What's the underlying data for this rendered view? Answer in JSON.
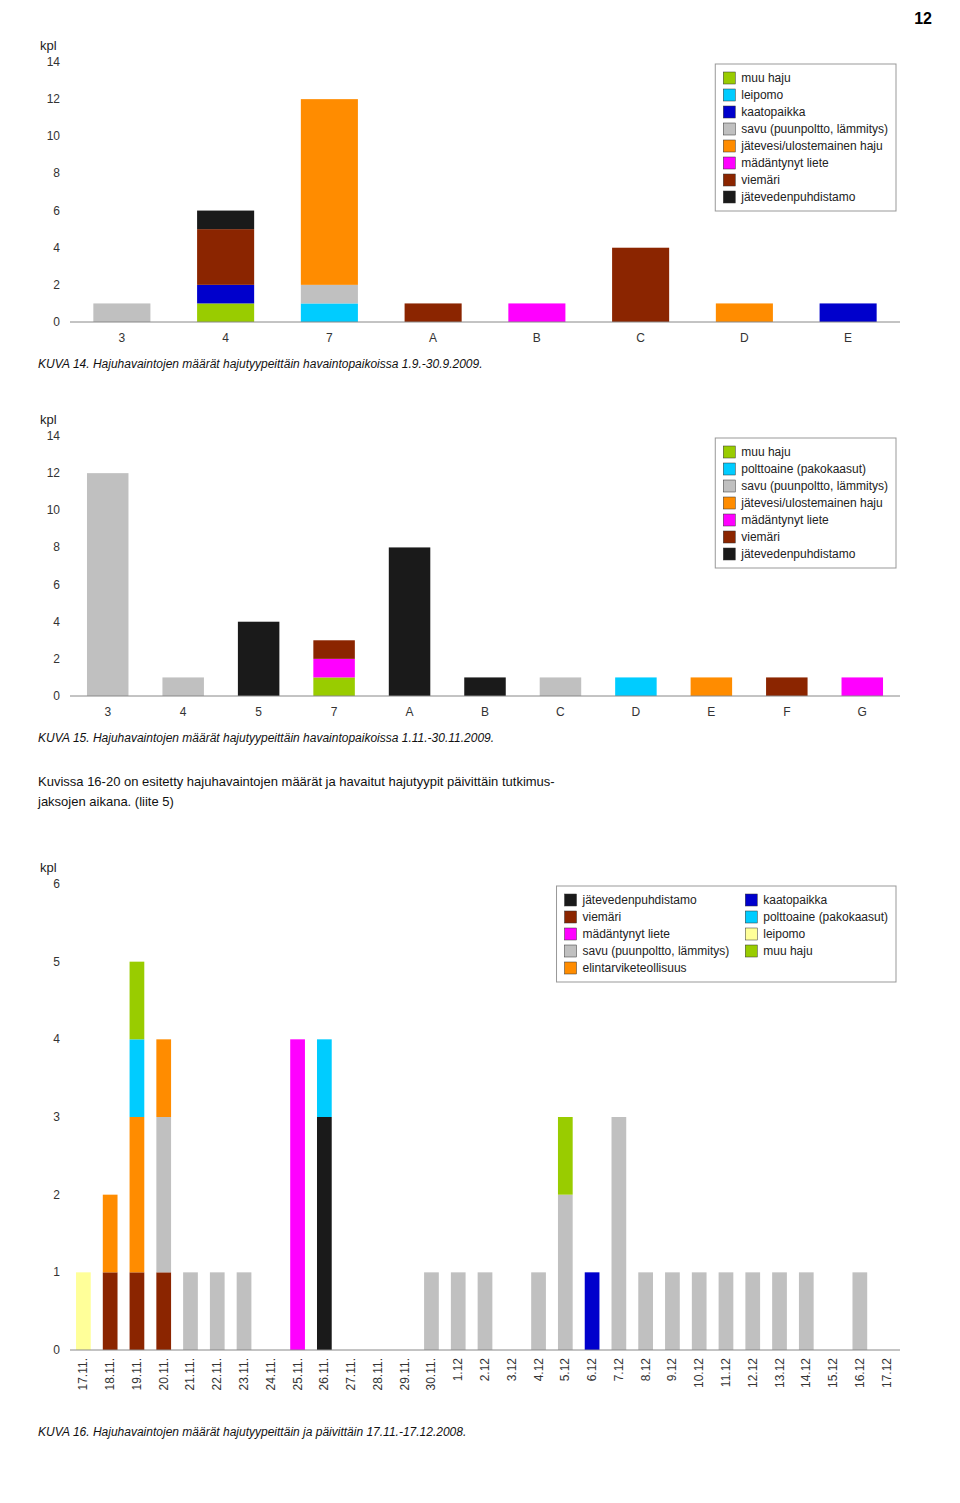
{
  "page_number": "12",
  "text": [
    "Kuvissa 16-20 on esitetty hajuhavaintojen määrät ja havaitut hajutyypit päivittäin tutkimus-",
    "jaksojen aikana. (liite 5)"
  ],
  "chart_data": [
    {
      "type": "bar",
      "stacked": true,
      "grid": false,
      "legend": "upper right",
      "title": "KUVA 14. Hajuhavaintojen määrät hajutyypeittäin havaintopaikoissa 1.9.-30.9.2009.",
      "ylabel": "kpl",
      "ylim": [
        0,
        14
      ],
      "yticks": [
        0,
        2,
        4,
        6,
        8,
        10,
        12,
        14
      ],
      "categories": [
        "3",
        "4",
        "7",
        "A",
        "B",
        "C",
        "D",
        "E"
      ],
      "series": [
        {
          "name": "muu haju",
          "color": "#99cc00",
          "values": [
            0,
            1,
            0,
            0,
            0,
            0,
            0,
            0
          ]
        },
        {
          "name": "leipomo",
          "color": "#00ccff",
          "values": [
            0,
            0,
            1,
            0,
            0,
            0,
            0,
            0
          ]
        },
        {
          "name": "kaatopaikka",
          "color": "#0000cc",
          "values": [
            0,
            1,
            0,
            0,
            0,
            0,
            0,
            1
          ]
        },
        {
          "name": "savu (puunpoltto, lämmitys)",
          "color": "#c0c0c0",
          "values": [
            1,
            0,
            1,
            0,
            0,
            0,
            0,
            0
          ]
        },
        {
          "name": "jätevesi/ulostemainen haju",
          "color": "#ff8c00",
          "values": [
            0,
            0,
            10,
            0,
            0,
            0,
            1,
            0
          ]
        },
        {
          "name": "mädäntynyt liete",
          "color": "#ff00ff",
          "values": [
            0,
            0,
            0,
            0,
            1,
            0,
            0,
            0
          ]
        },
        {
          "name": "viemäri",
          "color": "#8b2500",
          "values": [
            0,
            3,
            0,
            1,
            0,
            4,
            0,
            0
          ]
        },
        {
          "name": "jätevedenpuhdistamo",
          "color": "#1a1a1a",
          "values": [
            0,
            1,
            0,
            0,
            0,
            0,
            0,
            0
          ]
        }
      ]
    },
    {
      "type": "bar",
      "stacked": true,
      "grid": false,
      "legend": "upper right",
      "title": "KUVA 15. Hajuhavaintojen määrät hajutyypeittäin havaintopaikoissa 1.11.-30.11.2009.",
      "ylabel": "kpl",
      "ylim": [
        0,
        14
      ],
      "yticks": [
        0,
        2,
        4,
        6,
        8,
        10,
        12,
        14
      ],
      "categories": [
        "3",
        "4",
        "5",
        "7",
        "A",
        "B",
        "C",
        "D",
        "E",
        "F",
        "G"
      ],
      "series": [
        {
          "name": "muu haju",
          "color": "#99cc00",
          "values": [
            0,
            0,
            0,
            1,
            0,
            0,
            0,
            0,
            0,
            0,
            0
          ]
        },
        {
          "name": "polttoaine (pakokaasut)",
          "color": "#00ccff",
          "values": [
            0,
            0,
            0,
            0,
            0,
            0,
            0,
            1,
            0,
            0,
            0
          ]
        },
        {
          "name": "savu (puunpoltto, lämmitys)",
          "color": "#c0c0c0",
          "values": [
            12,
            1,
            0,
            0,
            0,
            0,
            1,
            0,
            0,
            0,
            0
          ]
        },
        {
          "name": "jätevesi/ulostemainen haju",
          "color": "#ff8c00",
          "values": [
            0,
            0,
            0,
            0,
            0,
            0,
            0,
            0,
            1,
            0,
            0
          ]
        },
        {
          "name": "mädäntynyt liete",
          "color": "#ff00ff",
          "values": [
            0,
            0,
            0,
            1,
            0,
            0,
            0,
            0,
            0,
            0,
            1
          ]
        },
        {
          "name": "viemäri",
          "color": "#8b2500",
          "values": [
            0,
            0,
            0,
            1,
            0,
            0,
            0,
            0,
            0,
            1,
            0
          ]
        },
        {
          "name": "jätevedenpuhdistamo",
          "color": "#1a1a1a",
          "values": [
            0,
            0,
            4,
            0,
            8,
            1,
            0,
            0,
            0,
            0,
            0
          ]
        }
      ]
    },
    {
      "type": "bar",
      "stacked": true,
      "grid": false,
      "legend": "upper right",
      "title": "KUVA 16. Hajuhavaintojen määrät hajutyypeittäin ja päivittäin 17.11.-17.12.2008.",
      "ylabel": "kpl",
      "ylim": [
        0,
        6
      ],
      "yticks": [
        0,
        1,
        2,
        3,
        4,
        5,
        6
      ],
      "categories": [
        "17.11.",
        "18.11.",
        "19.11.",
        "20.11.",
        "21.11.",
        "22.11.",
        "23.11.",
        "24.11.",
        "25.11.",
        "26.11.",
        "27.11.",
        "28.11.",
        "29.11.",
        "30.11.",
        "1.12",
        "2.12",
        "3.12",
        "4.12",
        "5.12",
        "6.12",
        "7.12",
        "8.12",
        "9.12",
        "10.12",
        "11.12",
        "12.12",
        "13.12",
        "14.12",
        "15.12",
        "16.12",
        "17.12"
      ],
      "series": [
        {
          "name": "jätevedenpuhdistamo",
          "color": "#1a1a1a",
          "values": [
            0,
            0,
            0,
            0,
            0,
            0,
            0,
            0,
            0,
            3,
            0,
            0,
            0,
            0,
            0,
            0,
            0,
            0,
            0,
            0,
            0,
            0,
            0,
            0,
            0,
            0,
            0,
            0,
            0,
            0,
            0
          ]
        },
        {
          "name": "viemäri",
          "color": "#8b2500",
          "values": [
            0,
            1,
            1,
            1,
            0,
            0,
            0,
            0,
            0,
            0,
            0,
            0,
            0,
            0,
            0,
            0,
            0,
            0,
            0,
            0,
            0,
            0,
            0,
            0,
            0,
            0,
            0,
            0,
            0,
            0,
            0
          ]
        },
        {
          "name": "mädäntynyt liete",
          "color": "#ff00ff",
          "values": [
            0,
            0,
            0,
            0,
            0,
            0,
            0,
            0,
            4,
            0,
            0,
            0,
            0,
            0,
            0,
            0,
            0,
            0,
            0,
            0,
            0,
            0,
            0,
            0,
            0,
            0,
            0,
            0,
            0,
            0,
            0
          ]
        },
        {
          "name": "savu (puunpoltto, lämmitys)",
          "color": "#c0c0c0",
          "values": [
            0,
            0,
            0,
            2,
            1,
            1,
            1,
            0,
            0,
            0,
            0,
            0,
            0,
            1,
            1,
            1,
            0,
            1,
            2,
            0,
            3,
            1,
            1,
            1,
            1,
            1,
            1,
            1,
            0,
            1,
            0
          ]
        },
        {
          "name": "elintarviketeollisuus",
          "color": "#ff8c00",
          "values": [
            0,
            1,
            2,
            1,
            0,
            0,
            0,
            0,
            0,
            0,
            0,
            0,
            0,
            0,
            0,
            0,
            0,
            0,
            0,
            0,
            0,
            0,
            0,
            0,
            0,
            0,
            0,
            0,
            0,
            0,
            0
          ]
        },
        {
          "name": "kaatopaikka",
          "color": "#0000cc",
          "values": [
            0,
            0,
            0,
            0,
            0,
            0,
            0,
            0,
            0,
            0,
            0,
            0,
            0,
            0,
            0,
            0,
            0,
            0,
            0,
            1,
            0,
            0,
            0,
            0,
            0,
            0,
            0,
            0,
            0,
            0,
            0
          ]
        },
        {
          "name": "polttoaine (pakokaasut)",
          "color": "#00ccff",
          "values": [
            0,
            0,
            1,
            0,
            0,
            0,
            0,
            0,
            0,
            1,
            0,
            0,
            0,
            0,
            0,
            0,
            0,
            0,
            0,
            0,
            0,
            0,
            0,
            0,
            0,
            0,
            0,
            0,
            0,
            0,
            0
          ]
        },
        {
          "name": "leipomo",
          "color": "#ffff99",
          "values": [
            1,
            0,
            0,
            0,
            0,
            0,
            0,
            0,
            0,
            0,
            0,
            0,
            0,
            0,
            0,
            0,
            0,
            0,
            0,
            0,
            0,
            0,
            0,
            0,
            0,
            0,
            0,
            0,
            0,
            0,
            0
          ]
        },
        {
          "name": "muu haju",
          "color": "#99cc00",
          "values": [
            0,
            0,
            1,
            0,
            0,
            0,
            0,
            0,
            0,
            0,
            0,
            0,
            0,
            0,
            0,
            0,
            0,
            0,
            1,
            0,
            0,
            0,
            0,
            0,
            0,
            0,
            0,
            0,
            0,
            0,
            0
          ]
        }
      ]
    }
  ]
}
